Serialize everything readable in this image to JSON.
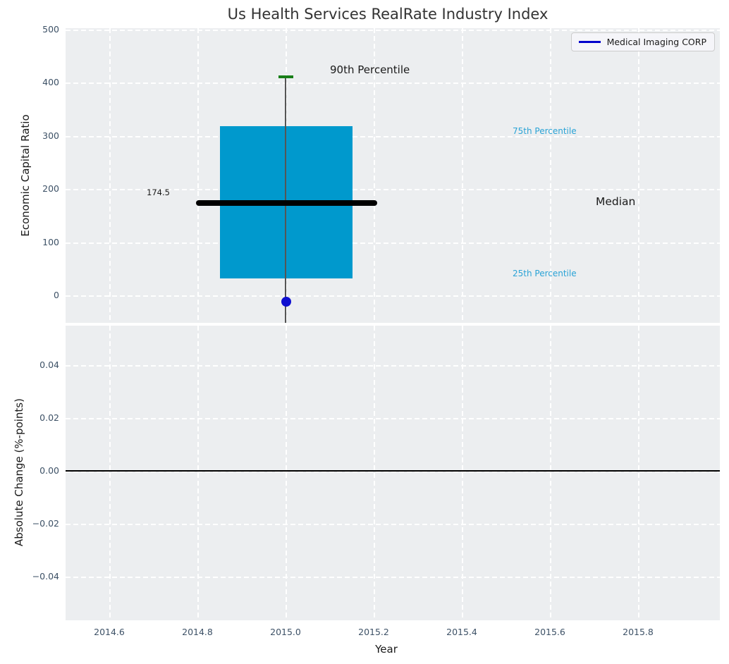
{
  "title": "Us Health Services RealRate Industry Index",
  "legend": {
    "label": "Medical Imaging CORP",
    "line_color": "#0000cc"
  },
  "chart_data": [
    {
      "type": "box",
      "title": "Us Health Services RealRate Industry Index",
      "ylabel": "Economic Capital Ratio",
      "ylim": [
        -52,
        500
      ],
      "yticks": [
        "500",
        "400",
        "300",
        "200",
        "100",
        "0"
      ],
      "grid": "white dashed, on",
      "legend_position": "upper right",
      "box": {
        "x_center": 2015.0,
        "x_span": [
          2014.85,
          2015.15
        ],
        "q1_25th_percentile": 32,
        "q3_75th_percentile": 317,
        "median": 174.5,
        "p90_whisker_high": 408,
        "p10_whisker_low": "extends below axis (clipped at ~-52)",
        "box_color": "#0099cd",
        "whisker_color": "#555555",
        "cap_color": "#187e18",
        "median_color": "#000000",
        "median_x_span": [
          2014.8,
          2015.21
        ]
      },
      "point": {
        "name": "Medical Imaging CORP",
        "x": 2015.0,
        "y": -10,
        "color": "#0f0fd0",
        "marker": "circle"
      },
      "annotations": {
        "p90": "90th Percentile",
        "p75": "75th Percentile",
        "median": "Median",
        "p25": "25th Percentile"
      },
      "median_label": "174.5"
    },
    {
      "type": "line",
      "ylabel": "Absolute Change (%-points)",
      "xlabel": "Year",
      "ylim": [
        -0.055,
        0.055
      ],
      "yticks": [
        "0.04",
        "0.02",
        "0.00",
        "−0.02",
        "−0.04"
      ],
      "xticks": [
        "2014.6",
        "2014.8",
        "2015.0",
        "2015.2",
        "2015.4",
        "2015.6",
        "2015.8"
      ],
      "xlim": [
        2014.5,
        2015.99
      ],
      "series": [],
      "zero_line": 0.0,
      "grid": "white dashed, on"
    }
  ],
  "colors": {
    "plot_background": "#eceef0",
    "figure_background": "#ffffff",
    "tick_label": "#3d5166",
    "annotation_cyan": "#2aa3d6",
    "title": "#333333"
  }
}
